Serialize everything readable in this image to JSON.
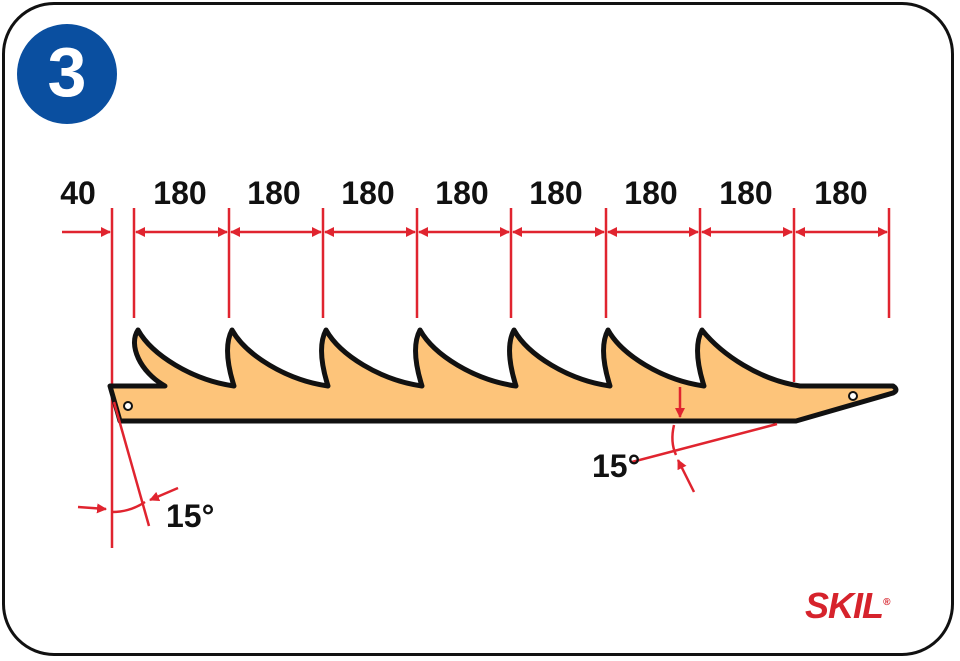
{
  "step": {
    "number": "3"
  },
  "dimensions": {
    "offset": "40",
    "spacings": [
      "180",
      "180",
      "180",
      "180",
      "180",
      "180",
      "180",
      "180"
    ]
  },
  "angles": {
    "left": "15°",
    "right": "15°"
  },
  "brand": {
    "logo": "SKIL",
    "reg": "®"
  },
  "colors": {
    "board": "#fdc47a",
    "dimension": "#e0242f",
    "badge": "#0a4fa0",
    "outline": "#111111"
  }
}
